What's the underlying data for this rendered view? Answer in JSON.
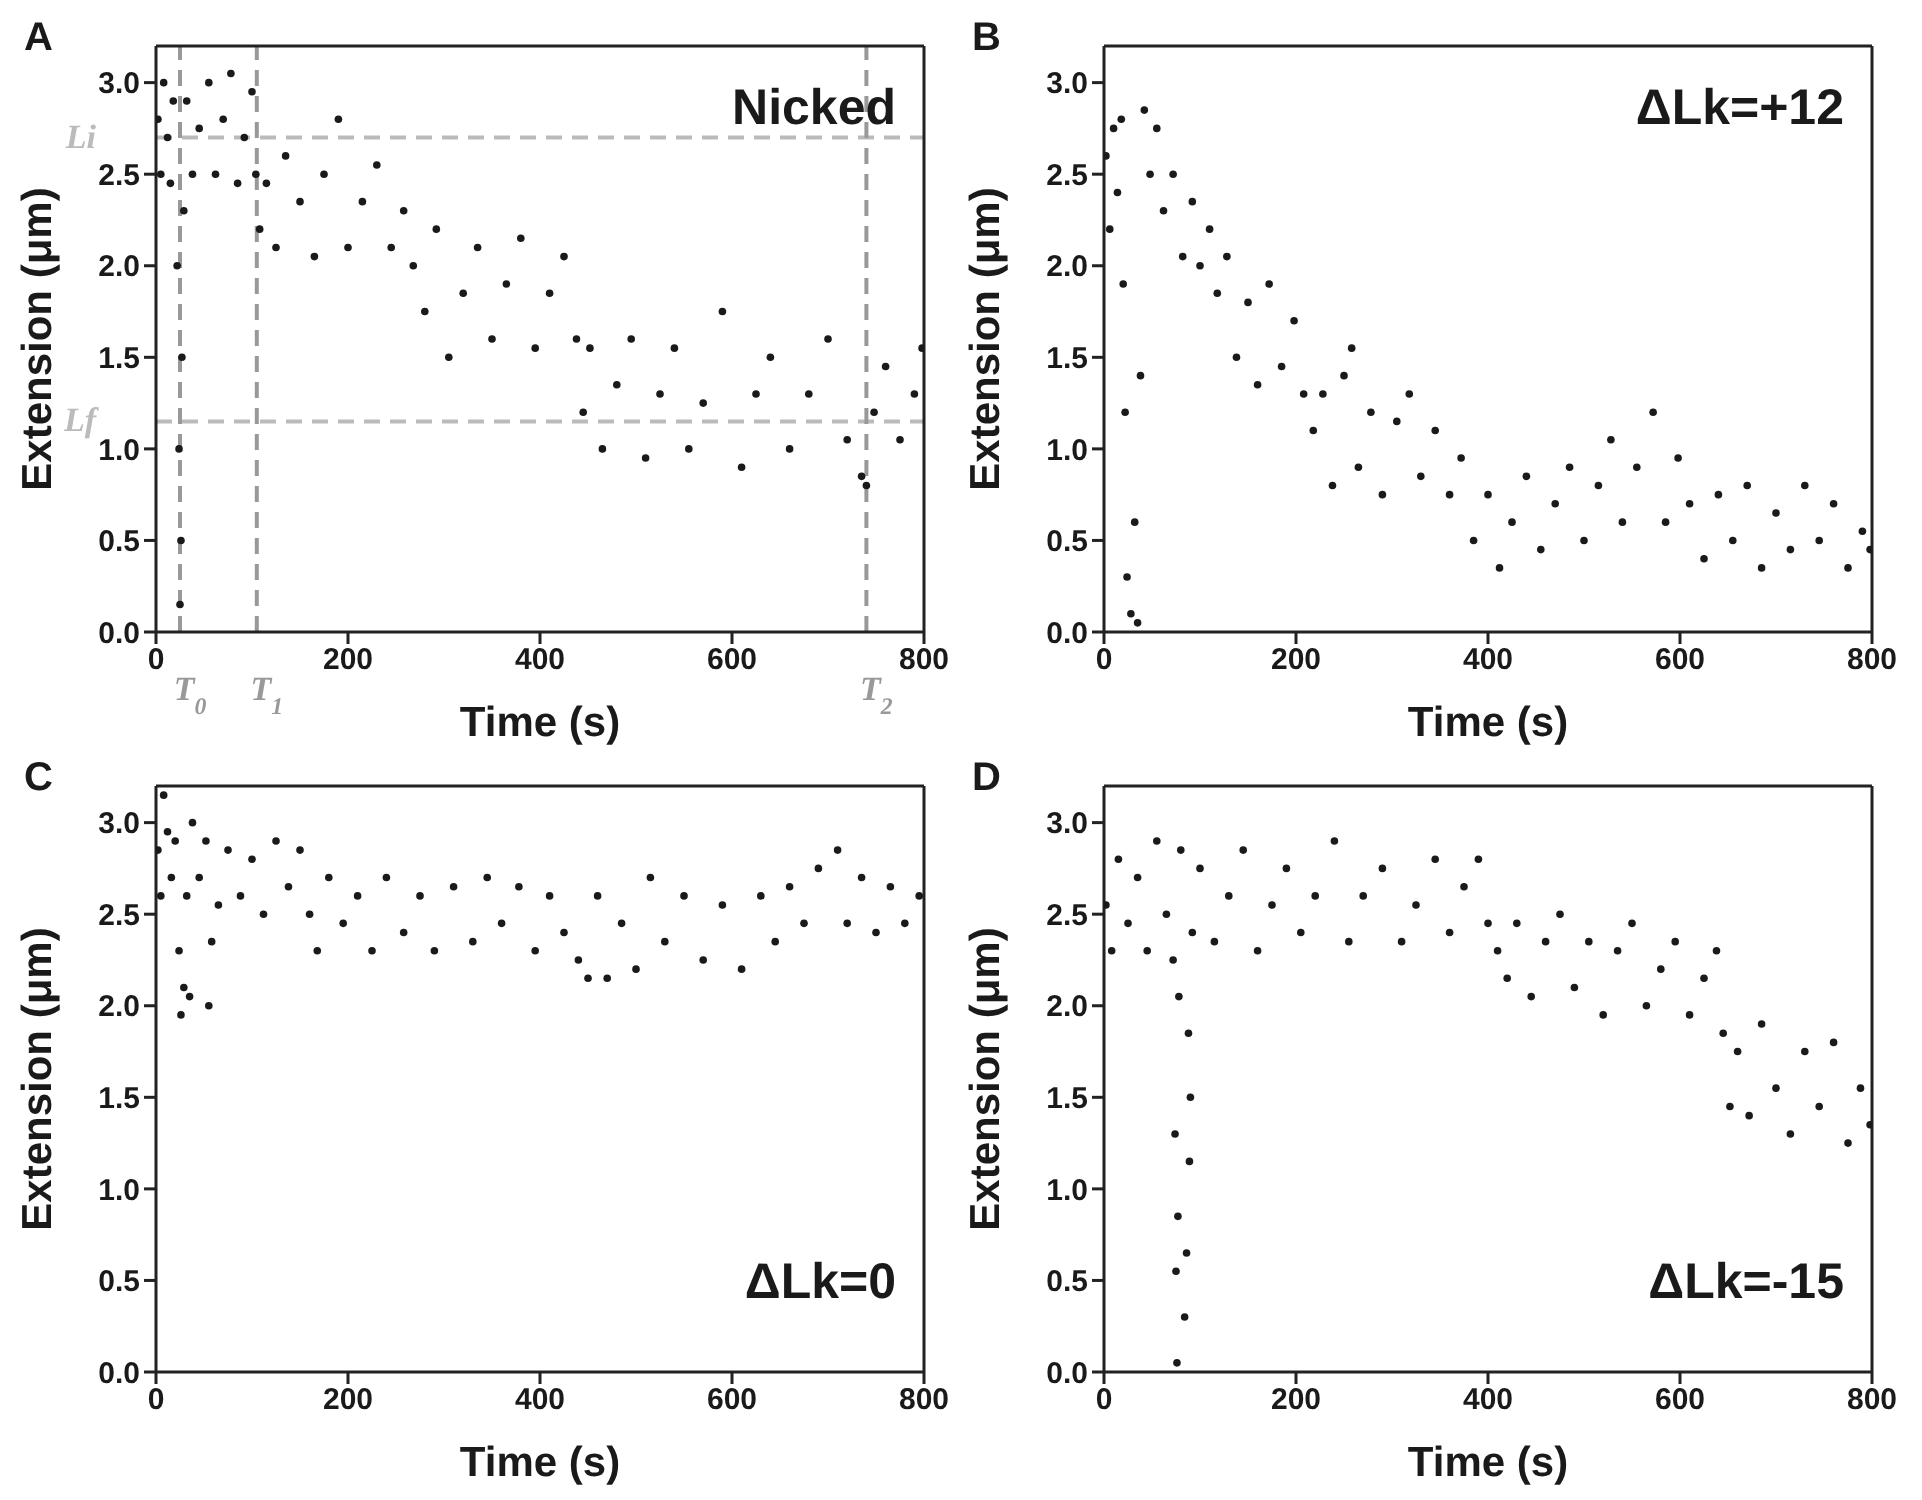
{
  "chart_data": [
    {
      "type": "scatter",
      "xlabel": "Time (s)",
      "ylabel": "Extension (μm)",
      "annotations": [
        "A",
        "Nicked"
      ],
      "xlim": [
        0,
        800
      ],
      "xticks": [
        0,
        200,
        400,
        600,
        800
      ],
      "ylim": [
        0,
        3.2
      ],
      "yticks": [
        {
          "value": 0,
          "label": "0.0"
        },
        0.5,
        {
          "value": 1,
          "label": "1.0"
        },
        1.5,
        {
          "value": 2,
          "label": "2.0"
        },
        2.5,
        {
          "value": 3,
          "label": "3.0"
        }
      ],
      "marker": "circle",
      "ref_lines": [
        {
          "axis": "y",
          "value": 2.7,
          "label": "Li",
          "color": "#bbbbbb",
          "line_style": "dashed"
        },
        {
          "axis": "y",
          "value": 1.15,
          "label": "Lf",
          "color": "#bbbbbb",
          "line_style": "dashed"
        },
        {
          "axis": "x",
          "value": 25,
          "label": "T$_{0}$",
          "color": "#999999",
          "line_style": "dashed"
        },
        {
          "axis": "x",
          "value": 105,
          "label": "T$_{1}$",
          "color": "#999999",
          "line_style": "dashed"
        },
        {
          "axis": "x",
          "value": 740,
          "label": "T$_{2}$",
          "color": "#999999",
          "line_style": "dashed"
        }
      ],
      "series": [
        {
          "color": "#1a1a1a",
          "x": [
            2,
            5,
            8,
            12,
            15,
            18,
            22,
            24,
            25,
            26,
            27,
            29,
            32,
            38,
            45,
            55,
            62,
            70,
            78,
            85,
            92,
            100,
            104,
            108,
            115,
            125,
            135,
            150,
            165,
            175,
            190,
            200,
            215,
            230,
            245,
            258,
            268,
            280,
            292,
            305,
            320,
            335,
            350,
            365,
            380,
            395,
            410,
            425,
            438,
            445,
            452,
            465,
            480,
            495,
            510,
            525,
            540,
            555,
            570,
            590,
            610,
            625,
            640,
            660,
            680,
            700,
            720,
            735,
            740,
            748,
            760,
            775,
            790,
            798
          ],
          "values": [
            2.8,
            2.5,
            3.0,
            2.7,
            2.45,
            2.9,
            2.0,
            1.0,
            0.15,
            0.5,
            1.5,
            2.3,
            2.9,
            2.5,
            2.75,
            3.0,
            2.5,
            2.8,
            3.05,
            2.45,
            2.7,
            2.95,
            2.5,
            2.2,
            2.45,
            2.1,
            2.6,
            2.35,
            2.05,
            2.5,
            2.8,
            2.1,
            2.35,
            2.55,
            2.1,
            2.3,
            2.0,
            1.75,
            2.2,
            1.5,
            1.85,
            2.1,
            1.6,
            1.9,
            2.15,
            1.55,
            1.85,
            2.05,
            1.6,
            1.2,
            1.55,
            1.0,
            1.35,
            1.6,
            0.95,
            1.3,
            1.55,
            1.0,
            1.25,
            1.75,
            0.9,
            1.3,
            1.5,
            1.0,
            1.3,
            1.6,
            1.05,
            0.85,
            0.8,
            1.2,
            1.45,
            1.05,
            1.3,
            1.55
          ]
        }
      ]
    },
    {
      "type": "scatter",
      "xlabel": "Time (s)",
      "ylabel": "Extension (μm)",
      "annotations": [
        "B",
        "ΔLk=+12"
      ],
      "xlim": [
        0,
        800
      ],
      "xticks": [
        0,
        200,
        400,
        600,
        800
      ],
      "ylim": [
        0,
        3.2
      ],
      "yticks": [
        {
          "value": 0,
          "label": "0.0"
        },
        0.5,
        {
          "value": 1,
          "label": "1.0"
        },
        1.5,
        {
          "value": 2,
          "label": "2.0"
        },
        2.5,
        {
          "value": 3,
          "label": "3.0"
        }
      ],
      "marker": "circle",
      "series": [
        {
          "color": "#1a1a1a",
          "x": [
            2,
            6,
            10,
            14,
            18,
            20,
            22,
            24,
            28,
            32,
            35,
            38,
            42,
            48,
            55,
            62,
            72,
            82,
            92,
            100,
            110,
            118,
            128,
            138,
            150,
            160,
            172,
            185,
            198,
            208,
            218,
            228,
            238,
            250,
            258,
            265,
            278,
            290,
            305,
            318,
            330,
            345,
            360,
            372,
            385,
            400,
            412,
            425,
            440,
            455,
            470,
            485,
            500,
            515,
            528,
            540,
            555,
            572,
            585,
            598,
            610,
            625,
            640,
            655,
            670,
            685,
            700,
            715,
            730,
            745,
            760,
            775,
            790,
            798
          ],
          "values": [
            2.6,
            2.2,
            2.75,
            2.4,
            2.8,
            1.9,
            1.2,
            0.3,
            0.1,
            0.6,
            0.05,
            1.4,
            2.85,
            2.5,
            2.75,
            2.3,
            2.5,
            2.05,
            2.35,
            2.0,
            2.2,
            1.85,
            2.05,
            1.5,
            1.8,
            1.35,
            1.9,
            1.45,
            1.7,
            1.3,
            1.1,
            1.3,
            0.8,
            1.4,
            1.55,
            0.9,
            1.2,
            0.75,
            1.15,
            1.3,
            0.85,
            1.1,
            0.75,
            0.95,
            0.5,
            0.75,
            0.35,
            0.6,
            0.85,
            0.45,
            0.7,
            0.9,
            0.5,
            0.8,
            1.05,
            0.6,
            0.9,
            1.2,
            0.6,
            0.95,
            0.7,
            0.4,
            0.75,
            0.5,
            0.8,
            0.35,
            0.65,
            0.45,
            0.8,
            0.5,
            0.7,
            0.35,
            0.55,
            0.45
          ]
        }
      ]
    },
    {
      "type": "scatter",
      "xlabel": "Time (s)",
      "ylabel": "Extension (μm)",
      "annotations": [
        "C",
        "ΔLk=0"
      ],
      "xlim": [
        0,
        800
      ],
      "xticks": [
        0,
        200,
        400,
        600,
        800
      ],
      "ylim": [
        0,
        3.2
      ],
      "yticks": [
        {
          "value": 0,
          "label": "0.0"
        },
        0.5,
        {
          "value": 1,
          "label": "1.0"
        },
        1.5,
        {
          "value": 2,
          "label": "2.0"
        },
        2.5,
        {
          "value": 3,
          "label": "3.0"
        }
      ],
      "marker": "circle",
      "series": [
        {
          "color": "#1a1a1a",
          "x": [
            2,
            5,
            8,
            12,
            16,
            20,
            24,
            26,
            29,
            32,
            35,
            38,
            45,
            52,
            55,
            58,
            65,
            75,
            88,
            100,
            112,
            125,
            138,
            150,
            160,
            168,
            180,
            195,
            210,
            225,
            240,
            258,
            275,
            290,
            310,
            330,
            345,
            360,
            378,
            395,
            410,
            425,
            440,
            450,
            460,
            470,
            485,
            500,
            515,
            530,
            550,
            570,
            590,
            610,
            630,
            645,
            660,
            675,
            690,
            710,
            720,
            735,
            750,
            765,
            780,
            795
          ],
          "values": [
            2.85,
            2.6,
            3.15,
            2.95,
            2.7,
            2.9,
            2.3,
            1.95,
            2.1,
            2.6,
            2.05,
            3.0,
            2.7,
            2.9,
            2.0,
            2.35,
            2.55,
            2.85,
            2.6,
            2.8,
            2.5,
            2.9,
            2.65,
            2.85,
            2.5,
            2.3,
            2.7,
            2.45,
            2.6,
            2.3,
            2.7,
            2.4,
            2.6,
            2.3,
            2.65,
            2.35,
            2.7,
            2.45,
            2.65,
            2.3,
            2.6,
            2.4,
            2.25,
            2.15,
            2.6,
            2.15,
            2.45,
            2.2,
            2.7,
            2.35,
            2.6,
            2.25,
            2.55,
            2.2,
            2.6,
            2.35,
            2.65,
            2.45,
            2.75,
            2.85,
            2.45,
            2.7,
            2.4,
            2.65,
            2.45,
            2.6
          ]
        }
      ]
    },
    {
      "type": "scatter",
      "xlabel": "Time (s)",
      "ylabel": "Extension (μm)",
      "annotations": [
        "D",
        "ΔLk=-15"
      ],
      "xlim": [
        0,
        800
      ],
      "xticks": [
        0,
        200,
        400,
        600,
        800
      ],
      "ylim": [
        0,
        3.2
      ],
      "yticks": [
        {
          "value": 0,
          "label": "0.0"
        },
        0.5,
        {
          "value": 1,
          "label": "1.0"
        },
        1.5,
        {
          "value": 2,
          "label": "2.0"
        },
        2.5,
        {
          "value": 3,
          "label": "3.0"
        }
      ],
      "marker": "circle",
      "series": [
        {
          "color": "#1a1a1a",
          "x": [
            2,
            8,
            15,
            25,
            35,
            45,
            55,
            65,
            72,
            74,
            75,
            76,
            77,
            78,
            80,
            84,
            86,
            88,
            89,
            90,
            92,
            100,
            115,
            130,
            145,
            160,
            175,
            190,
            205,
            220,
            240,
            255,
            270,
            290,
            310,
            325,
            345,
            360,
            375,
            390,
            400,
            410,
            420,
            430,
            445,
            460,
            475,
            490,
            505,
            520,
            535,
            550,
            565,
            580,
            595,
            610,
            625,
            638,
            645,
            652,
            660,
            672,
            685,
            700,
            715,
            730,
            745,
            760,
            775,
            788,
            798
          ],
          "values": [
            2.55,
            2.3,
            2.8,
            2.45,
            2.7,
            2.3,
            2.9,
            2.5,
            2.25,
            1.3,
            0.55,
            0.05,
            0.85,
            2.05,
            2.85,
            0.3,
            0.65,
            1.85,
            1.15,
            1.5,
            2.4,
            2.75,
            2.35,
            2.6,
            2.85,
            2.3,
            2.55,
            2.75,
            2.4,
            2.6,
            2.9,
            2.35,
            2.6,
            2.75,
            2.35,
            2.55,
            2.8,
            2.4,
            2.65,
            2.8,
            2.45,
            2.3,
            2.15,
            2.45,
            2.05,
            2.35,
            2.5,
            2.1,
            2.35,
            1.95,
            2.3,
            2.45,
            2.0,
            2.2,
            2.35,
            1.95,
            2.15,
            2.3,
            1.85,
            1.45,
            1.75,
            1.4,
            1.9,
            1.55,
            1.3,
            1.75,
            1.45,
            1.8,
            1.25,
            1.55,
            1.35
          ]
        }
      ]
    }
  ]
}
